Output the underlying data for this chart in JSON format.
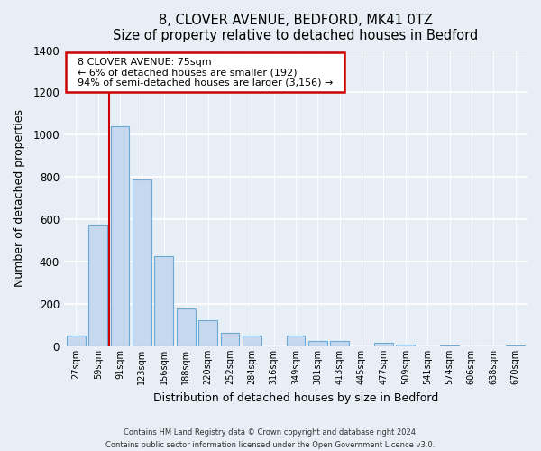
{
  "title": "8, CLOVER AVENUE, BEDFORD, MK41 0TZ",
  "subtitle": "Size of property relative to detached houses in Bedford",
  "xlabel": "Distribution of detached houses by size in Bedford",
  "ylabel": "Number of detached properties",
  "bar_labels": [
    "27sqm",
    "59sqm",
    "91sqm",
    "123sqm",
    "156sqm",
    "188sqm",
    "220sqm",
    "252sqm",
    "284sqm",
    "316sqm",
    "349sqm",
    "381sqm",
    "413sqm",
    "445sqm",
    "477sqm",
    "509sqm",
    "541sqm",
    "574sqm",
    "606sqm",
    "638sqm",
    "670sqm"
  ],
  "bar_values": [
    50,
    575,
    1040,
    790,
    425,
    180,
    125,
    65,
    50,
    0,
    50,
    25,
    25,
    0,
    15,
    10,
    0,
    5,
    0,
    0,
    5
  ],
  "bar_color": "#c5d8ee",
  "bar_edge_color": "#6aaad4",
  "ylim": [
    0,
    1400
  ],
  "yticks": [
    0,
    200,
    400,
    600,
    800,
    1000,
    1200,
    1400
  ],
  "vline_color": "#cc0000",
  "vline_pos": 1.5,
  "annotation_title": "8 CLOVER AVENUE: 75sqm",
  "annotation_line1": "← 6% of detached houses are smaller (192)",
  "annotation_line2": "94% of semi-detached houses are larger (3,156) →",
  "annotation_box_color": "#cc0000",
  "footer_line1": "Contains HM Land Registry data © Crown copyright and database right 2024.",
  "footer_line2": "Contains public sector information licensed under the Open Government Licence v3.0.",
  "background_color": "#e8eef5",
  "plot_bg_color": "#e8eef5"
}
